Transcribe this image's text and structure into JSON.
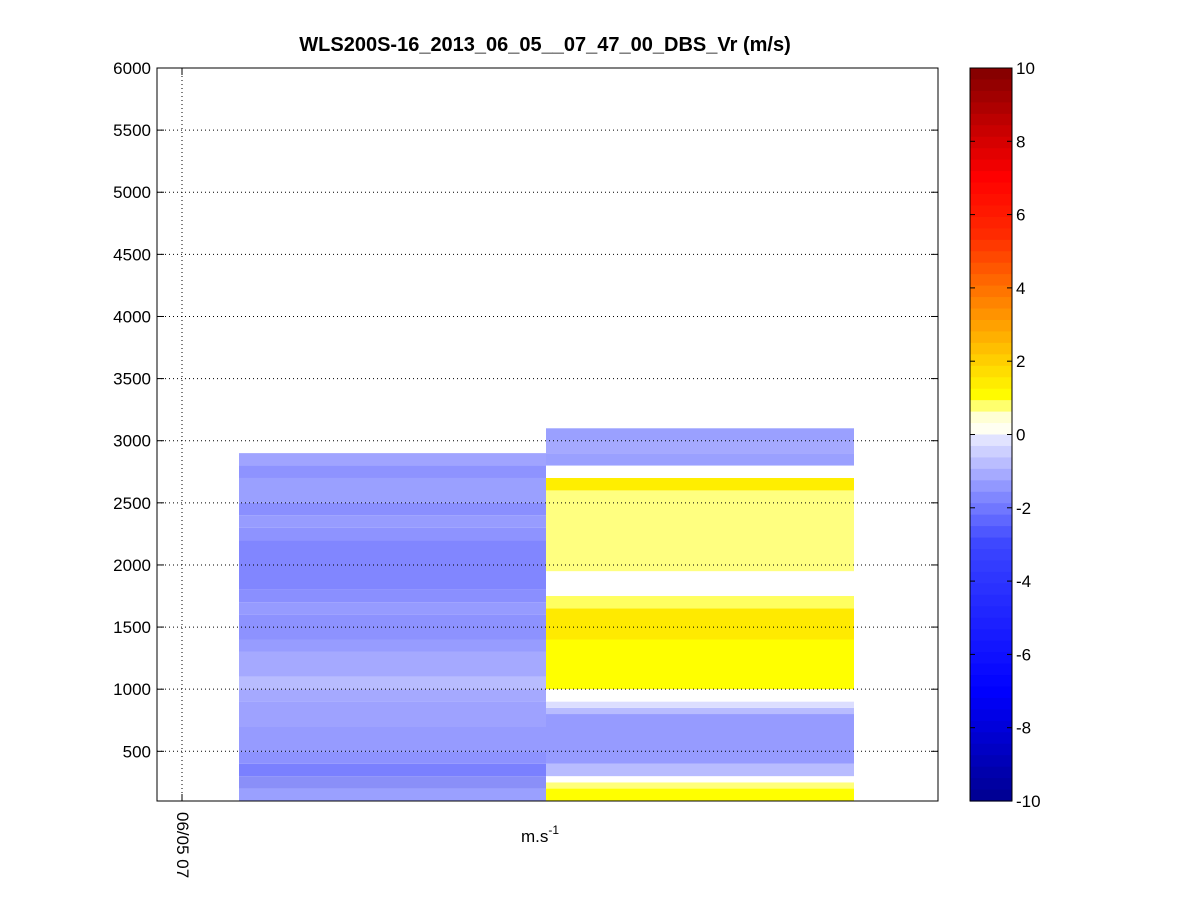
{
  "chart_data": {
    "type": "heatmap",
    "title": "WLS200S-16_2013_06_05__07_47_00_DBS_Vr (m/s)",
    "xlabel": "m.s",
    "xlabel_superscript": "-1",
    "ylabel": "",
    "ylim": [
      100,
      6000
    ],
    "yticks": [
      500,
      1000,
      1500,
      2000,
      2500,
      3000,
      3500,
      4000,
      4500,
      5000,
      5500,
      6000
    ],
    "xtick_label": "06/05 07",
    "grid": true,
    "colorbar": {
      "range": [
        -10,
        10
      ],
      "ticks": [
        10,
        8,
        6,
        4,
        2,
        0,
        -2,
        -4,
        -6,
        -8,
        -10
      ],
      "position": "right"
    },
    "columns": [
      {
        "segments": [
          {
            "y0": 100,
            "y1": 200,
            "color": "#9aa0ff"
          },
          {
            "y0": 200,
            "y1": 300,
            "color": "#8a8ff8"
          },
          {
            "y0": 300,
            "y1": 400,
            "color": "#7a80ff"
          },
          {
            "y0": 400,
            "y1": 500,
            "color": "#8d92ff"
          },
          {
            "y0": 500,
            "y1": 700,
            "color": "#969bff"
          },
          {
            "y0": 700,
            "y1": 900,
            "color": "#9ea2ff"
          },
          {
            "y0": 900,
            "y1": 1000,
            "color": "#a5a9ff"
          },
          {
            "y0": 1000,
            "y1": 1100,
            "color": "#b8bcff"
          },
          {
            "y0": 1100,
            "y1": 1300,
            "color": "#a5a9ff"
          },
          {
            "y0": 1300,
            "y1": 1400,
            "color": "#979cff"
          },
          {
            "y0": 1400,
            "y1": 1600,
            "color": "#8d92ff"
          },
          {
            "y0": 1600,
            "y1": 1700,
            "color": "#969bff"
          },
          {
            "y0": 1700,
            "y1": 1800,
            "color": "#8a8fff"
          },
          {
            "y0": 1800,
            "y1": 2200,
            "color": "#8186ff"
          },
          {
            "y0": 2200,
            "y1": 2300,
            "color": "#8e93ff"
          },
          {
            "y0": 2300,
            "y1": 2400,
            "color": "#979cff"
          },
          {
            "y0": 2400,
            "y1": 2500,
            "color": "#8a8fff"
          },
          {
            "y0": 2500,
            "y1": 2700,
            "color": "#9aa0ff"
          },
          {
            "y0": 2700,
            "y1": 2800,
            "color": "#8e93ff"
          },
          {
            "y0": 2800,
            "y1": 2900,
            "color": "#a0a4ff"
          }
        ]
      },
      {
        "segments": [
          {
            "y0": 100,
            "y1": 200,
            "color": "#ffff00"
          },
          {
            "y0": 200,
            "y1": 250,
            "color": "#ffff7a"
          },
          {
            "y0": 250,
            "y1": 300,
            "color": "#ffffff"
          },
          {
            "y0": 300,
            "y1": 400,
            "color": "#b8bcff"
          },
          {
            "y0": 400,
            "y1": 800,
            "color": "#969bff"
          },
          {
            "y0": 800,
            "y1": 850,
            "color": "#b8bcff"
          },
          {
            "y0": 850,
            "y1": 900,
            "color": "#dcdeff"
          },
          {
            "y0": 900,
            "y1": 1000,
            "color": "#ffffff"
          },
          {
            "y0": 1000,
            "y1": 1400,
            "color": "#ffff00"
          },
          {
            "y0": 1400,
            "y1": 1650,
            "color": "#ffea00"
          },
          {
            "y0": 1650,
            "y1": 1750,
            "color": "#ffff60"
          },
          {
            "y0": 1750,
            "y1": 1950,
            "color": "#ffffff"
          },
          {
            "y0": 1950,
            "y1": 2600,
            "color": "#ffff80"
          },
          {
            "y0": 2600,
            "y1": 2700,
            "color": "#ffee00"
          },
          {
            "y0": 2700,
            "y1": 2800,
            "color": "#ffffff"
          },
          {
            "y0": 2800,
            "y1": 2900,
            "color": "#9aa0ff"
          },
          {
            "y0": 2900,
            "y1": 3000,
            "color": "#a5a9ff"
          },
          {
            "y0": 3000,
            "y1": 3100,
            "color": "#9aa0ff"
          }
        ]
      }
    ]
  }
}
